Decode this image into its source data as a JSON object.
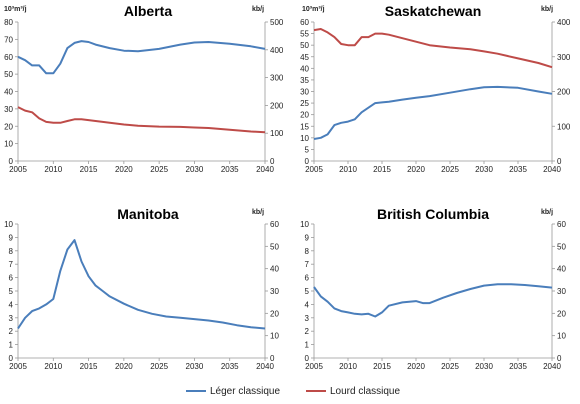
{
  "legend": {
    "items": [
      {
        "label": "Léger classique",
        "color": "#4a7ebb"
      },
      {
        "label": "Lourd classique",
        "color": "#be4b48"
      }
    ]
  },
  "chart_data": [
    {
      "type": "line",
      "title": "Alberta",
      "y_left_unit": "10³m³/j",
      "y_right_unit": "kb/j",
      "xlim": [
        2005,
        2040
      ],
      "x_ticks": [
        2005,
        2010,
        2015,
        2020,
        2025,
        2030,
        2035,
        2040
      ],
      "ylim_left": [
        0,
        80
      ],
      "y_left_ticks": [
        0,
        10,
        20,
        30,
        40,
        50,
        60,
        70,
        80
      ],
      "ylim_right": [
        0,
        500
      ],
      "y_right_ticks": [
        0,
        100,
        200,
        300,
        400,
        500
      ],
      "series": [
        {
          "name": "Léger classique",
          "color": "#4a7ebb",
          "x": [
            2005,
            2006,
            2007,
            2008,
            2009,
            2010,
            2011,
            2012,
            2013,
            2014,
            2015,
            2016,
            2018,
            2020,
            2022,
            2025,
            2028,
            2030,
            2032,
            2035,
            2038,
            2040
          ],
          "y": [
            60,
            58,
            55,
            55,
            50.5,
            50.5,
            56,
            65,
            68,
            69,
            68.5,
            67,
            65,
            63.5,
            63.2,
            64.5,
            67,
            68.2,
            68.5,
            67.5,
            66,
            64.5
          ]
        },
        {
          "name": "Lourd classique",
          "color": "#be4b48",
          "x": [
            2005,
            2006,
            2007,
            2008,
            2009,
            2010,
            2011,
            2012,
            2013,
            2014,
            2016,
            2018,
            2020,
            2022,
            2025,
            2028,
            2030,
            2032,
            2035,
            2038,
            2040
          ],
          "y": [
            31,
            29,
            28,
            24.5,
            22.5,
            22,
            22,
            23,
            24,
            24,
            23,
            22,
            21,
            20.3,
            19.8,
            19.6,
            19.3,
            19,
            18,
            17,
            16.5
          ]
        }
      ]
    },
    {
      "type": "line",
      "title": "Saskatchewan",
      "y_left_unit": "10³m³/j",
      "y_right_unit": "kb/j",
      "xlim": [
        2005,
        2040
      ],
      "x_ticks": [
        2005,
        2010,
        2015,
        2020,
        2025,
        2030,
        2035,
        2040
      ],
      "ylim_left": [
        0,
        60
      ],
      "y_left_ticks": [
        0,
        5,
        10,
        15,
        20,
        25,
        30,
        35,
        40,
        45,
        50,
        55,
        60
      ],
      "ylim_right": [
        0,
        400
      ],
      "y_right_ticks": [
        0,
        100,
        200,
        300,
        400
      ],
      "series": [
        {
          "name": "Léger classique",
          "color": "#4a7ebb",
          "x": [
            2005,
            2006,
            2007,
            2008,
            2009,
            2010,
            2011,
            2012,
            2013,
            2014,
            2015,
            2016,
            2018,
            2020,
            2022,
            2025,
            2028,
            2030,
            2032,
            2035,
            2038,
            2040
          ],
          "y": [
            9.5,
            10,
            11.5,
            15.5,
            16.5,
            17,
            18,
            21,
            23,
            25,
            25.3,
            25.6,
            26.5,
            27.3,
            28,
            29.5,
            31,
            31.8,
            32,
            31.6,
            30,
            29
          ]
        },
        {
          "name": "Lourd classique",
          "color": "#be4b48",
          "x": [
            2005,
            2006,
            2007,
            2008,
            2009,
            2010,
            2011,
            2012,
            2013,
            2014,
            2015,
            2016,
            2018,
            2020,
            2022,
            2025,
            2028,
            2030,
            2032,
            2035,
            2038,
            2040
          ],
          "y": [
            56.5,
            57,
            55.5,
            53.5,
            50.5,
            50,
            50,
            53.5,
            53.5,
            55,
            55,
            54.5,
            53,
            51.5,
            50,
            49,
            48.2,
            47.3,
            46.3,
            44.3,
            42.3,
            40.5
          ]
        }
      ]
    },
    {
      "type": "line",
      "title": "Manitoba",
      "y_left_unit": "",
      "y_right_unit": "kb/j",
      "xlim": [
        2005,
        2040
      ],
      "x_ticks": [
        2005,
        2010,
        2015,
        2020,
        2025,
        2030,
        2035,
        2040
      ],
      "ylim_left": [
        0,
        10
      ],
      "y_left_ticks": [
        0,
        1,
        2,
        3,
        4,
        5,
        6,
        7,
        8,
        9,
        10
      ],
      "ylim_right": [
        0,
        60
      ],
      "y_right_ticks": [
        0,
        10,
        20,
        30,
        40,
        50,
        60
      ],
      "series": [
        {
          "name": "Léger classique",
          "color": "#4a7ebb",
          "x": [
            2005,
            2006,
            2007,
            2008,
            2009,
            2010,
            2011,
            2012,
            2013,
            2014,
            2015,
            2016,
            2017,
            2018,
            2020,
            2022,
            2024,
            2026,
            2028,
            2030,
            2032,
            2034,
            2036,
            2038,
            2040
          ],
          "y": [
            2.2,
            3,
            3.5,
            3.7,
            4,
            4.4,
            6.5,
            8.1,
            8.8,
            7.2,
            6.1,
            5.4,
            5,
            4.6,
            4.05,
            3.6,
            3.3,
            3.1,
            3,
            2.9,
            2.8,
            2.65,
            2.45,
            2.3,
            2.2
          ]
        }
      ]
    },
    {
      "type": "line",
      "title": "British Columbia",
      "y_left_unit": "",
      "y_right_unit": "kb/j",
      "xlim": [
        2005,
        2040
      ],
      "x_ticks": [
        2005,
        2010,
        2015,
        2020,
        2025,
        2030,
        2035,
        2040
      ],
      "ylim_left": [
        0,
        10
      ],
      "y_left_ticks": [
        0,
        1,
        2,
        3,
        4,
        5,
        6,
        7,
        8,
        9,
        10
      ],
      "ylim_right": [
        0,
        60
      ],
      "y_right_ticks": [
        0,
        10,
        20,
        30,
        40,
        50,
        60
      ],
      "series": [
        {
          "name": "Léger classique",
          "color": "#4a7ebb",
          "x": [
            2005,
            2006,
            2007,
            2008,
            2009,
            2010,
            2011,
            2012,
            2013,
            2014,
            2015,
            2016,
            2018,
            2020,
            2021,
            2022,
            2024,
            2026,
            2028,
            2030,
            2032,
            2034,
            2036,
            2038,
            2040
          ],
          "y": [
            5.3,
            4.6,
            4.2,
            3.7,
            3.5,
            3.4,
            3.3,
            3.25,
            3.3,
            3.1,
            3.4,
            3.9,
            4.15,
            4.25,
            4.1,
            4.1,
            4.5,
            4.85,
            5.15,
            5.4,
            5.5,
            5.5,
            5.45,
            5.35,
            5.25
          ]
        }
      ]
    }
  ]
}
